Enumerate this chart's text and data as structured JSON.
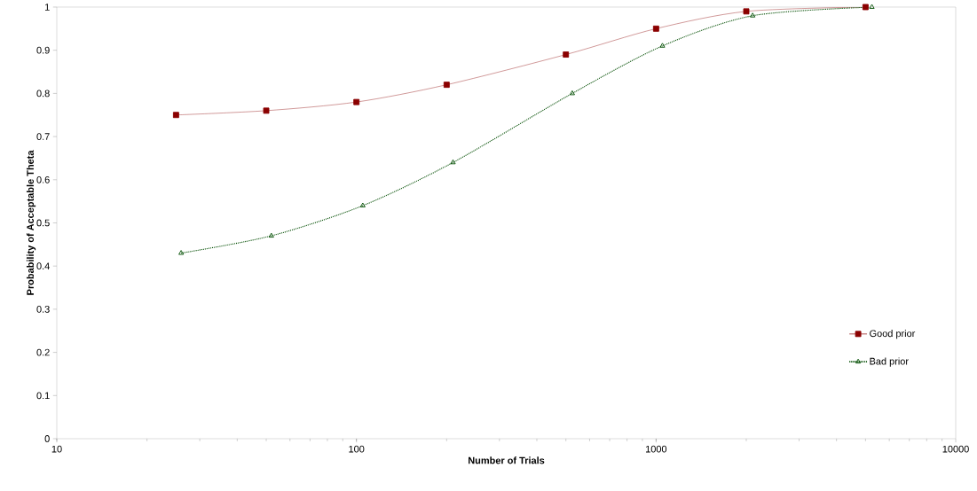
{
  "chart_data": {
    "type": "line",
    "xlabel": "Number of Trials",
    "ylabel": "Probability of Acceptable Theta",
    "log": "x",
    "xlim": [
      10,
      10000
    ],
    "xticks": [
      10,
      100,
      1000,
      10000
    ],
    "ylim": [
      0,
      1
    ],
    "yticks": [
      0,
      0.1,
      0.2,
      0.3,
      0.4,
      0.5,
      0.6,
      0.7,
      0.8,
      0.9,
      1
    ],
    "legend": "right",
    "grid": false,
    "series": [
      {
        "name": "Good prior",
        "color": "#8b0000",
        "marker": "square",
        "line_style": "solid",
        "x": [
          25,
          50,
          100,
          200,
          500,
          1000,
          2000,
          5000
        ],
        "values": [
          0.75,
          0.76,
          0.78,
          0.82,
          0.89,
          0.95,
          0.99,
          1.0
        ]
      },
      {
        "name": "Bad prior",
        "color": "#004d00",
        "marker": "triangle",
        "line_style": "dotted",
        "x": [
          26,
          52,
          105,
          210,
          525,
          1050,
          2100,
          5250
        ],
        "values": [
          0.43,
          0.47,
          0.54,
          0.64,
          0.8,
          0.91,
          0.98,
          1.0
        ]
      }
    ]
  }
}
